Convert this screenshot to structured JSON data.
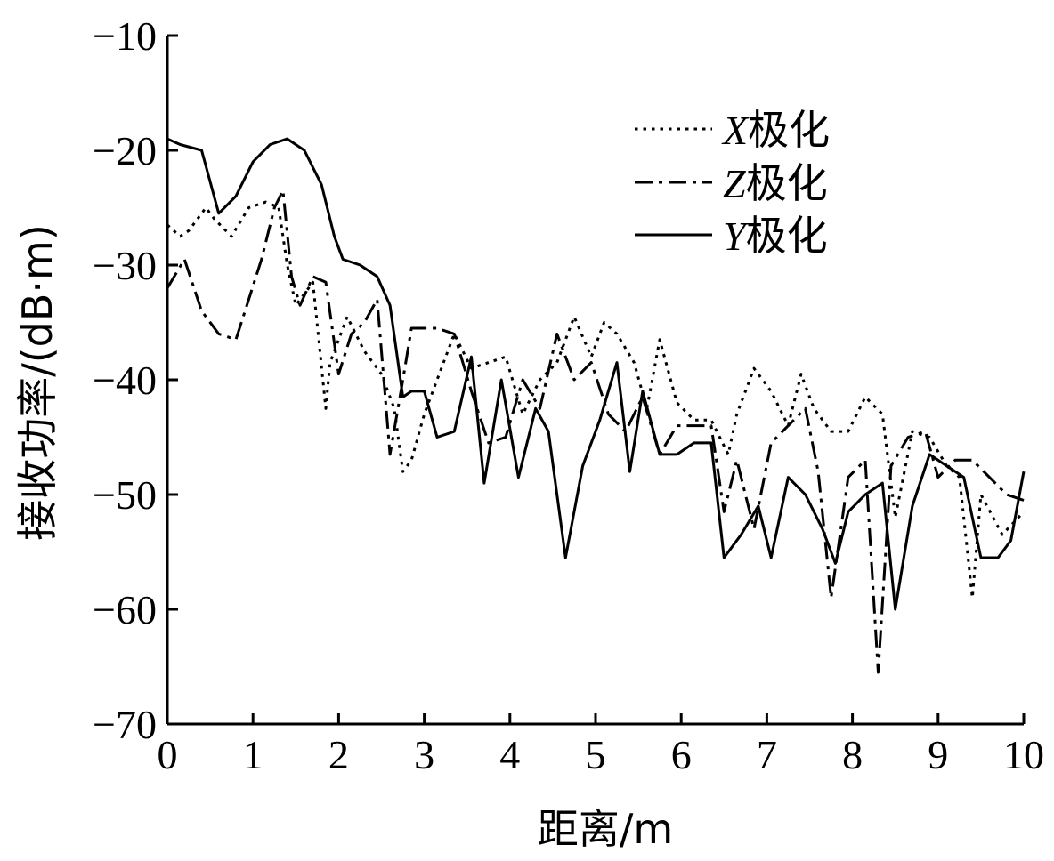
{
  "chart_data": {
    "type": "line",
    "xlabel": "距离/m",
    "ylabel": "接收功率/(dB·m)",
    "xlim": [
      0,
      10
    ],
    "ylim": [
      -70,
      -10
    ],
    "xticks": [
      0,
      1,
      2,
      3,
      4,
      5,
      6,
      7,
      8,
      9,
      10
    ],
    "yticks": [
      -70,
      -60,
      -50,
      -40,
      -30,
      -20,
      -10
    ],
    "xtick_labels": [
      "0",
      "1",
      "2",
      "3",
      "4",
      "5",
      "6",
      "7",
      "8",
      "9",
      "10"
    ],
    "ytick_labels": [
      "−70",
      "−60",
      "−50",
      "−40",
      "−30",
      "−20",
      "−10"
    ],
    "legend_position": "top-right",
    "grid": false,
    "series": [
      {
        "name": "X极化",
        "name_letter": "X",
        "name_suffix": "极化",
        "dash": "dotted",
        "x": [
          0,
          0.15,
          0.25,
          0.45,
          0.55,
          0.75,
          0.95,
          1.15,
          1.3,
          1.4,
          1.5,
          1.7,
          1.85,
          1.9,
          2.1,
          2.3,
          2.5,
          2.65,
          2.75,
          2.85,
          3.0,
          3.15,
          3.35,
          3.55,
          3.75,
          3.95,
          4.15,
          4.35,
          4.55,
          4.75,
          4.95,
          5.1,
          5.25,
          5.45,
          5.6,
          5.75,
          5.95,
          6.15,
          6.35,
          6.55,
          6.65,
          6.85,
          7.05,
          7.25,
          7.4,
          7.55,
          7.75,
          7.95,
          8.15,
          8.35,
          8.5,
          8.7,
          8.9,
          9.1,
          9.25,
          9.4,
          9.5,
          9.75,
          10.0
        ],
        "y": [
          -26.5,
          -27.5,
          -27.0,
          -25.0,
          -26.0,
          -27.5,
          -25.0,
          -24.5,
          -25.0,
          -30.0,
          -33.5,
          -31.5,
          -42.5,
          -38.5,
          -34.5,
          -37.5,
          -39.5,
          -42.5,
          -48.0,
          -47.0,
          -43.0,
          -40.0,
          -36.0,
          -39.0,
          -38.5,
          -38.0,
          -43.0,
          -40.0,
          -38.5,
          -34.5,
          -38.0,
          -35.0,
          -36.0,
          -38.5,
          -42.5,
          -36.5,
          -42.0,
          -43.5,
          -43.5,
          -46.5,
          -43.0,
          -39.0,
          -41.0,
          -44.0,
          -39.5,
          -42.5,
          -44.5,
          -44.5,
          -41.5,
          -43.0,
          -52.0,
          -44.5,
          -45.0,
          -47.5,
          -48.5,
          -59.0,
          -50.0,
          -53.5,
          -51.5
        ]
      },
      {
        "name": "Z极化",
        "name_letter": "Z",
        "name_suffix": "极化",
        "dash": "dashdot",
        "x": [
          0,
          0.2,
          0.4,
          0.6,
          0.8,
          0.95,
          1.1,
          1.25,
          1.35,
          1.45,
          1.55,
          1.7,
          1.85,
          2.0,
          2.15,
          2.3,
          2.45,
          2.6,
          2.75,
          2.85,
          3.0,
          3.15,
          3.35,
          3.55,
          3.75,
          3.95,
          4.15,
          4.35,
          4.55,
          4.75,
          4.95,
          5.15,
          5.35,
          5.55,
          5.75,
          5.95,
          6.15,
          6.35,
          6.5,
          6.65,
          6.85,
          7.05,
          7.25,
          7.45,
          7.6,
          7.75,
          7.95,
          8.15,
          8.3,
          8.45,
          8.65,
          8.85,
          9.0,
          9.2,
          9.4,
          9.6,
          9.8,
          10.0
        ],
        "y": [
          -32.0,
          -29.5,
          -34.0,
          -36.0,
          -36.5,
          -33.0,
          -29.5,
          -25.0,
          -23.5,
          -31.0,
          -33.5,
          -31.0,
          -31.5,
          -39.5,
          -36.0,
          -35.0,
          -33.0,
          -46.5,
          -40.0,
          -35.5,
          -35.5,
          -35.5,
          -36.0,
          -41.0,
          -45.5,
          -45.0,
          -40.0,
          -42.5,
          -36.0,
          -40.0,
          -38.5,
          -43.0,
          -44.5,
          -41.5,
          -46.5,
          -44.0,
          -44.0,
          -44.0,
          -51.5,
          -47.0,
          -53.0,
          -45.5,
          -44.0,
          -42.5,
          -48.0,
          -59.0,
          -48.5,
          -47.0,
          -65.5,
          -47.5,
          -45.0,
          -44.5,
          -48.5,
          -47.0,
          -47.0,
          -48.5,
          -50.0,
          -50.5
        ]
      },
      {
        "name": "Y极化",
        "name_letter": "Y",
        "name_suffix": "极化",
        "dash": "solid",
        "x": [
          0,
          0.15,
          0.4,
          0.6,
          0.8,
          1.0,
          1.2,
          1.4,
          1.6,
          1.8,
          1.95,
          2.05,
          2.25,
          2.45,
          2.6,
          2.75,
          2.85,
          3.0,
          3.15,
          3.35,
          3.55,
          3.7,
          3.9,
          4.1,
          4.3,
          4.45,
          4.65,
          4.85,
          5.05,
          5.25,
          5.4,
          5.55,
          5.75,
          5.95,
          6.15,
          6.35,
          6.5,
          6.7,
          6.9,
          7.05,
          7.25,
          7.45,
          7.65,
          7.8,
          7.95,
          8.15,
          8.35,
          8.5,
          8.7,
          8.9,
          9.1,
          9.3,
          9.5,
          9.7,
          9.85,
          10.0
        ],
        "y": [
          -19.0,
          -19.5,
          -20.0,
          -25.5,
          -24.0,
          -21.0,
          -19.5,
          -19.0,
          -20.0,
          -23.0,
          -27.5,
          -29.5,
          -30.0,
          -31.0,
          -33.5,
          -41.5,
          -41.0,
          -41.0,
          -45.0,
          -44.5,
          -38.0,
          -49.0,
          -40.0,
          -48.5,
          -42.5,
          -44.5,
          -55.5,
          -47.5,
          -43.5,
          -38.5,
          -48.0,
          -41.0,
          -46.5,
          -46.5,
          -45.5,
          -45.5,
          -55.5,
          -53.5,
          -51.0,
          -55.5,
          -48.5,
          -50.0,
          -53.0,
          -56.0,
          -51.5,
          -50.0,
          -49.0,
          -60.0,
          -51.0,
          -46.5,
          -47.5,
          -48.5,
          -55.5,
          -55.5,
          -54.0,
          -48.0
        ]
      }
    ]
  }
}
